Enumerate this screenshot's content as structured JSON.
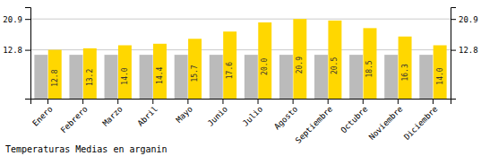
{
  "chart_data": {
    "type": "bar",
    "title": "Temperaturas Medias en arganin",
    "categories": [
      "Enero",
      "Febrero",
      "Marzo",
      "Abril",
      "Mayo",
      "Junio",
      "Julio",
      "Agosto",
      "Septiembre",
      "Octubre",
      "Noviembre",
      "Diciembre"
    ],
    "series": [
      {
        "color": "#BBBBBB",
        "values": [
          11.5,
          11.5,
          11.5,
          11.5,
          11.5,
          11.5,
          11.5,
          11.5,
          11.5,
          11.5,
          11.5,
          11.5
        ]
      },
      {
        "color": "#FFD700",
        "values": [
          12.8,
          13.2,
          14.0,
          14.4,
          15.7,
          17.6,
          20.0,
          20.9,
          20.5,
          18.5,
          16.3,
          14.0
        ],
        "value_labels": [
          "12.8",
          "13.2",
          "14.0",
          "14.4",
          "15.7",
          "17.6",
          "20.0",
          "20.9",
          "20.5",
          "18.5",
          "16.3",
          "14.0"
        ],
        "data_labels": true
      }
    ],
    "ylim": [
      0,
      24.0
    ],
    "yticks": [
      12.8,
      20.9
    ],
    "y2lim": [
      0,
      24.0
    ],
    "y2ticks": [
      12.8,
      20.9
    ],
    "grid": true
  }
}
